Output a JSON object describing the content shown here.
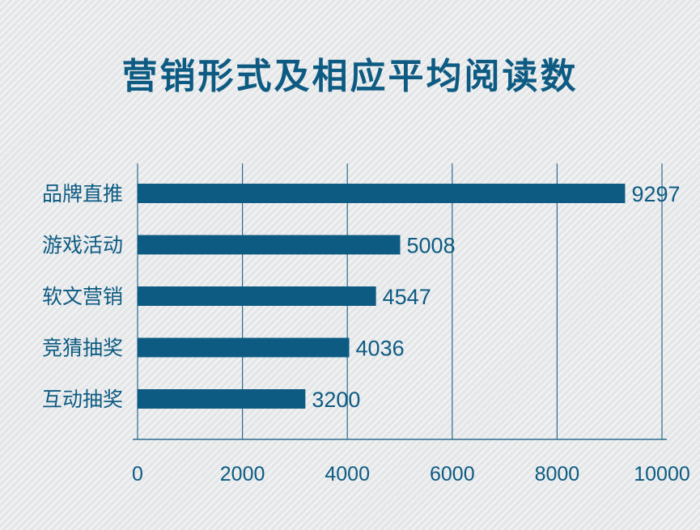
{
  "colors": {
    "bar": "#0d5b82",
    "text": "#0d5b82",
    "axis": "#2e6c8e"
  },
  "chart_data": {
    "type": "bar",
    "orientation": "horizontal",
    "title": "营销形式及相应平均阅读数",
    "categories": [
      "品牌直推",
      "游戏活动",
      "软文营销",
      "竞猜抽奖",
      "互动抽奖"
    ],
    "values": [
      9297,
      5008,
      4547,
      4036,
      3200
    ],
    "xlim": [
      0,
      10000
    ],
    "xticks": [
      0,
      2000,
      4000,
      6000,
      8000,
      10000
    ],
    "grid": "vertical",
    "legend": "none"
  }
}
